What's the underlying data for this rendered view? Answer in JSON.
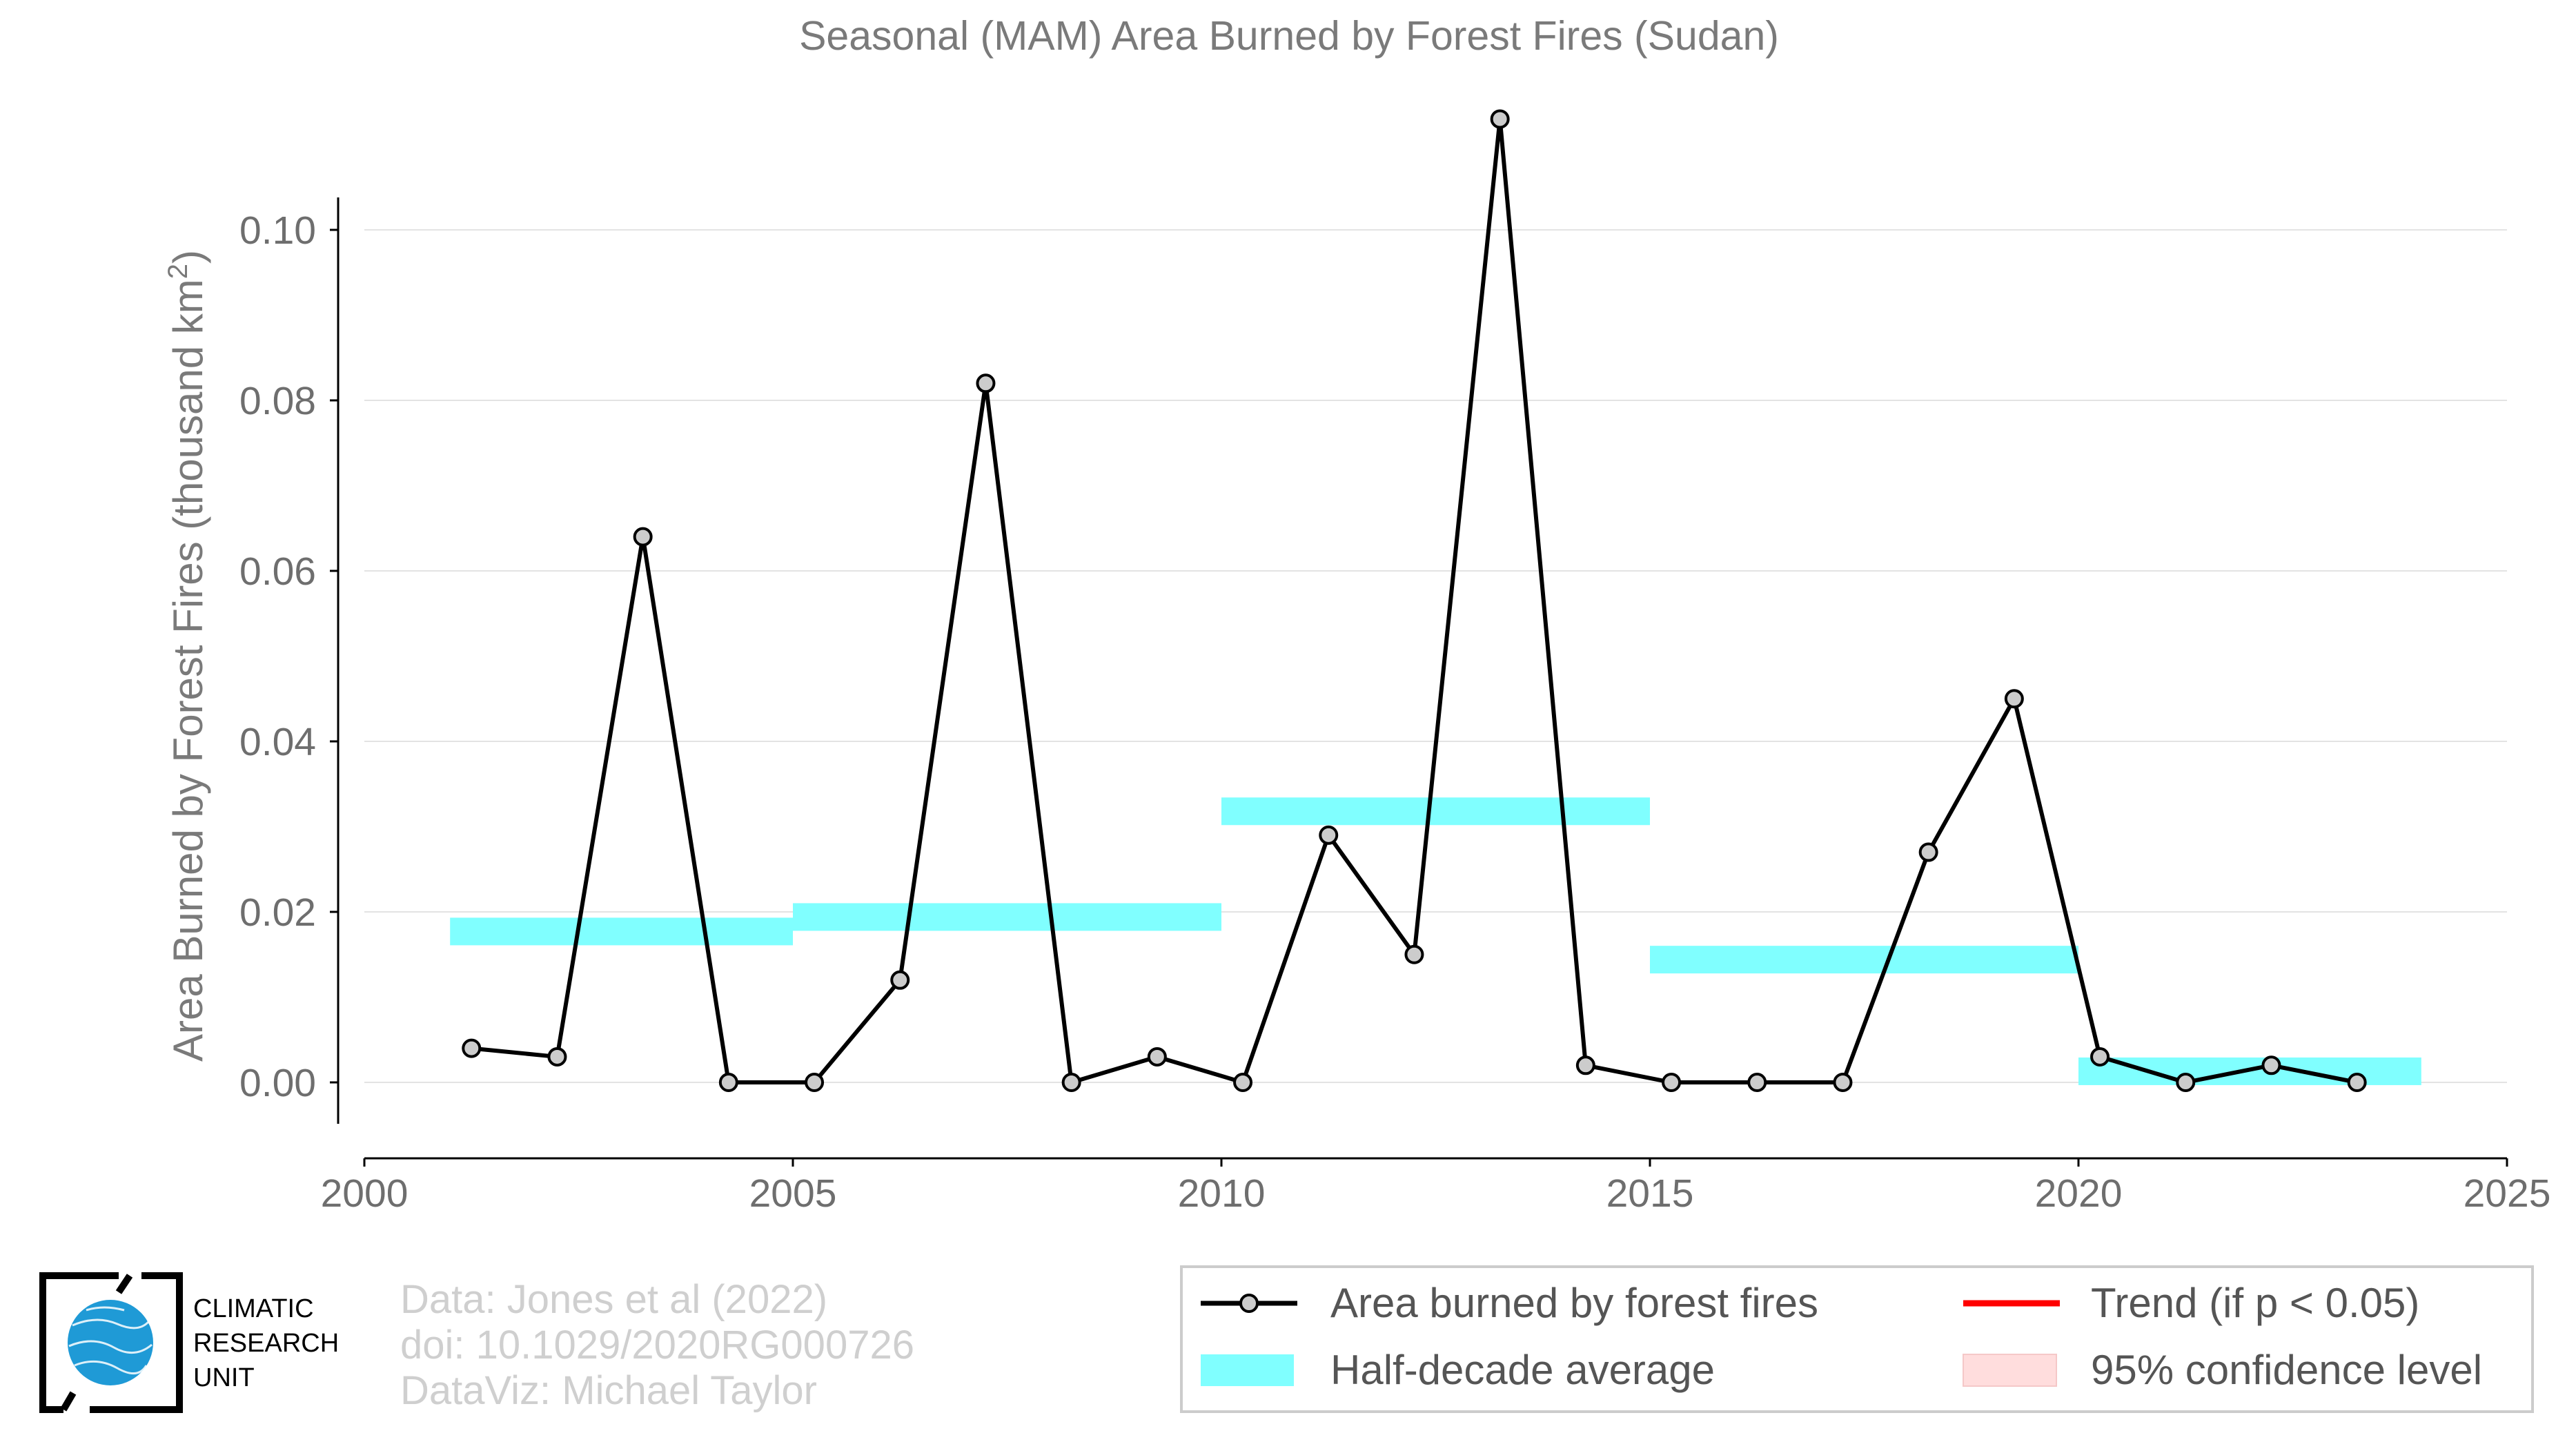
{
  "chart_data": {
    "type": "line",
    "title": "Seasonal (MAM) Area Burned by Forest Fires (Sudan)",
    "xlabel": "",
    "ylabel": "Area Burned by Forest Fires (thousand km²)",
    "ylabel_main": "Area Burned by Forest Fires (thousand km",
    "ylabel_sup": "2",
    "ylabel_close": ")",
    "xlim": [
      2000,
      2025
    ],
    "ylim": [
      -0.009,
      0.114
    ],
    "x_ticks": [
      2000,
      2005,
      2010,
      2015,
      2020,
      2025
    ],
    "x_tick_labels": [
      "2000",
      "2005",
      "2010",
      "2015",
      "2020",
      "2025"
    ],
    "y_ticks": [
      0.0,
      0.02,
      0.04,
      0.06,
      0.08,
      0.1
    ],
    "y_tick_labels": [
      "0.00",
      "0.02",
      "0.04",
      "0.06",
      "0.08",
      "0.10"
    ],
    "grid": "horizontal",
    "series": [
      {
        "name": "Area burned by forest fires",
        "color": "#000000",
        "marker_color": "#cccccc",
        "x": [
          2001.25,
          2002.25,
          2003.25,
          2004.25,
          2005.25,
          2006.25,
          2007.25,
          2008.25,
          2009.25,
          2010.25,
          2011.25,
          2012.25,
          2013.25,
          2014.25,
          2015.25,
          2016.25,
          2017.25,
          2018.25,
          2019.25,
          2020.25,
          2021.25,
          2022.25,
          2023.25
        ],
        "y": [
          0.004,
          0.003,
          0.064,
          0.0,
          0.0,
          0.012,
          0.082,
          0.0,
          0.003,
          0.0,
          0.029,
          0.015,
          0.113,
          0.002,
          0.0,
          0.0,
          0.0,
          0.027,
          0.045,
          0.003,
          0.0,
          0.002,
          0.0
        ]
      }
    ],
    "half_decade_average": {
      "name": "Half-decade average",
      "color": "#80ffff",
      "segments": [
        {
          "x0": 2001,
          "x1": 2005,
          "y": 0.0177
        },
        {
          "x0": 2005,
          "x1": 2010,
          "y": 0.0194
        },
        {
          "x0": 2010,
          "x1": 2015,
          "y": 0.0318
        },
        {
          "x0": 2015,
          "x1": 2020,
          "y": 0.0144
        },
        {
          "x0": 2020,
          "x1": 2024,
          "y": 0.0013
        }
      ]
    },
    "legend": {
      "placement": "bottom-right",
      "entries": [
        {
          "label": "Area burned by forest fires",
          "kind": "line-marker",
          "color": "#000000"
        },
        {
          "label": "Trend (if p < 0.05)",
          "kind": "line",
          "color": "#ff0000"
        },
        {
          "label": "Half-decade average",
          "kind": "band",
          "color": "#80ffff"
        },
        {
          "label": "95% confidence level",
          "kind": "band",
          "color": "#ffdddd"
        }
      ]
    }
  },
  "credits": {
    "data_source": "Data: Jones et al (2022)",
    "doi": "doi: 10.1029/2020RG000726",
    "dataviz": "DataViz: Michael Taylor"
  },
  "logo": {
    "line1": "CLIMATIC",
    "line2": "RESEARCH",
    "line3": "UNIT",
    "globe_color": "#1f9ad6"
  }
}
